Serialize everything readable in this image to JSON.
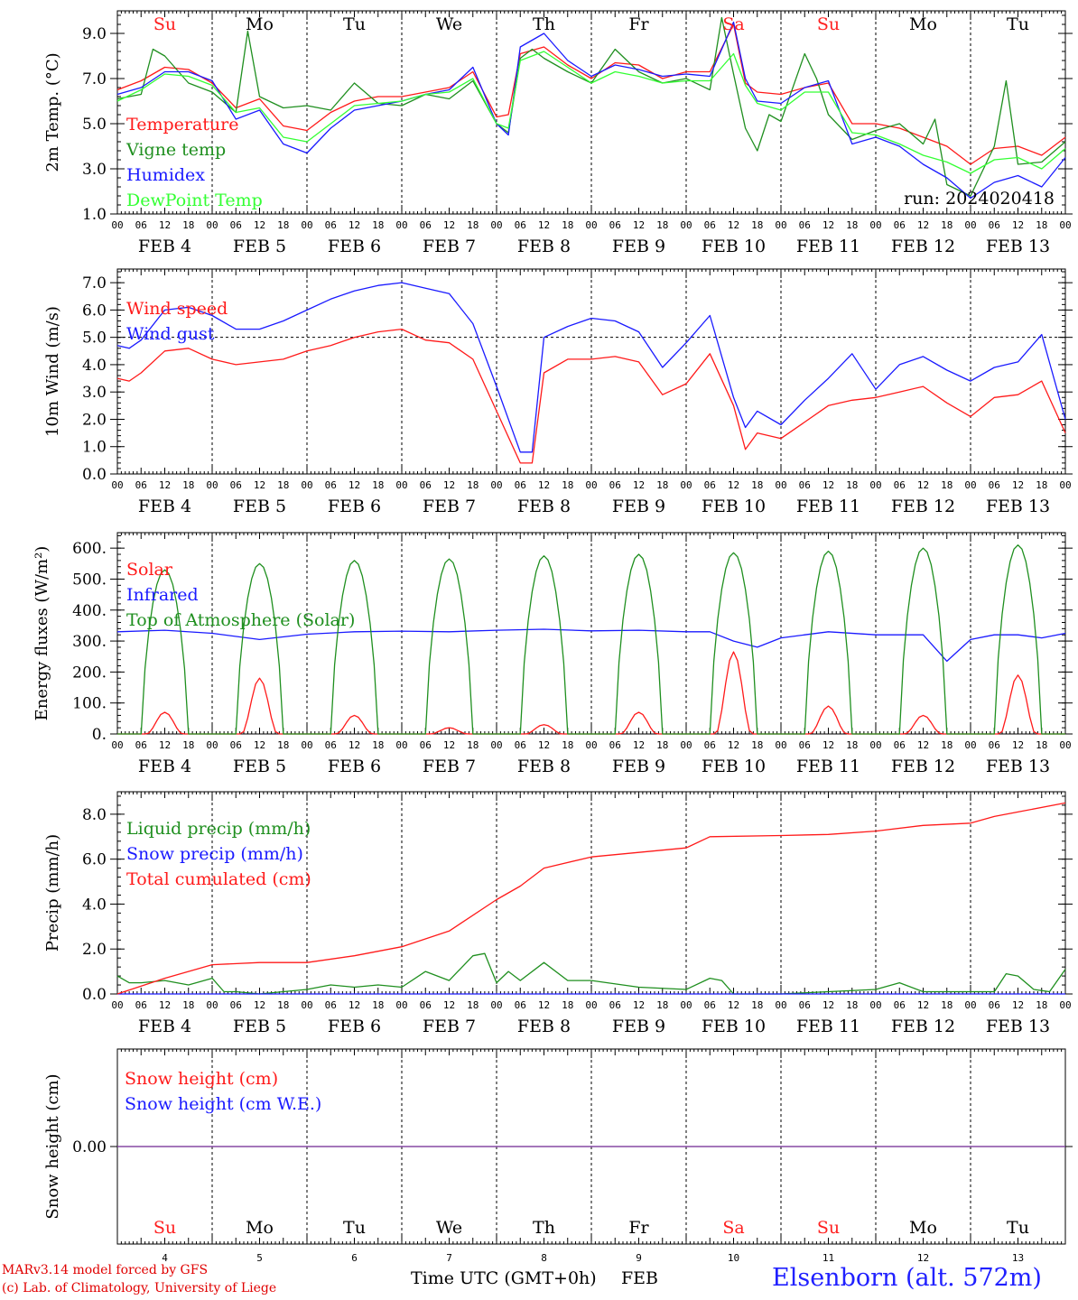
{
  "days": [
    {
      "dow": "Su",
      "date": "FEB  4",
      "num": "4",
      "weekend": true
    },
    {
      "dow": "Mo",
      "date": "FEB  5",
      "num": "5",
      "weekend": false
    },
    {
      "dow": "Tu",
      "date": "FEB  6",
      "num": "6",
      "weekend": false
    },
    {
      "dow": "We",
      "date": "FEB  7",
      "num": "7",
      "weekend": false
    },
    {
      "dow": "Th",
      "date": "FEB  8",
      "num": "8",
      "weekend": false
    },
    {
      "dow": "Fr",
      "date": "FEB  9",
      "num": "9",
      "weekend": false
    },
    {
      "dow": "Sa",
      "date": "FEB 10",
      "num": "10",
      "weekend": true
    },
    {
      "dow": "Su",
      "date": "FEB 11",
      "num": "11",
      "weekend": true
    },
    {
      "dow": "Mo",
      "date": "FEB 12",
      "num": "12",
      "weekend": false
    },
    {
      "dow": "Tu",
      "date": "FEB 13",
      "num": "13",
      "weekend": false
    }
  ],
  "hour_labels": [
    "00",
    "06",
    "12",
    "18"
  ],
  "end_hour_label": "00",
  "colors": {
    "red": "#ff1a1a",
    "green": "#1f8f1f",
    "blue": "#1a1aff",
    "lightgreen": "#33ff33",
    "purple": "#8040a0",
    "weekend": "#ff2020"
  },
  "footer": {
    "model": "MARv3.14 model forced by GFS",
    "credit": "(c) Lab. of Climatology, University of Liege",
    "xtitle": "Time UTC (GMT+0h)",
    "month": "FEB",
    "station": "Elsenborn (alt. 572m)"
  },
  "chart_data": [
    {
      "type": "line",
      "ylabel": "2m Temp. (°C)",
      "ylim": [
        1,
        10
      ],
      "yticks": [
        1,
        3,
        5,
        7,
        9
      ],
      "ytick_labels": [
        "1.0",
        "3.0",
        "5.0",
        "7.0",
        "9.0"
      ],
      "annotation": "run: 2024020418",
      "x_unit": "hours since FEB 4 00 UTC",
      "series": [
        {
          "name": "Temperature",
          "color": "red",
          "x": [
            0,
            6,
            12,
            18,
            24,
            30,
            36,
            42,
            48,
            54,
            60,
            66,
            72,
            78,
            84,
            90,
            96,
            99,
            102,
            108,
            114,
            120,
            126,
            132,
            138,
            144,
            150,
            156,
            159,
            162,
            168,
            174,
            180,
            186,
            192,
            198,
            204,
            210,
            216,
            222,
            228,
            234,
            240
          ],
          "y": [
            6.5,
            6.9,
            7.5,
            7.4,
            6.8,
            5.7,
            6.1,
            4.9,
            4.7,
            5.5,
            6.0,
            6.2,
            6.2,
            6.4,
            6.6,
            7.3,
            5.3,
            5.4,
            8.1,
            8.4,
            7.6,
            7.0,
            7.7,
            7.6,
            7.0,
            7.3,
            7.3,
            9.4,
            6.8,
            6.4,
            6.3,
            6.6,
            6.8,
            5.0,
            5.0,
            4.8,
            4.4,
            4.0,
            3.2,
            3.9,
            4.0,
            3.6,
            4.4
          ]
        },
        {
          "name": "Vigne temp",
          "color": "green",
          "x": [
            0,
            6,
            9,
            12,
            18,
            24,
            30,
            33,
            36,
            42,
            48,
            54,
            60,
            66,
            72,
            78,
            84,
            90,
            96,
            99,
            102,
            105,
            108,
            114,
            120,
            126,
            132,
            138,
            144,
            150,
            153,
            156,
            159,
            162,
            165,
            168,
            174,
            177,
            180,
            186,
            192,
            198,
            204,
            207,
            210,
            216,
            222,
            225,
            228,
            234,
            240
          ],
          "y": [
            6.1,
            6.3,
            8.3,
            8.0,
            6.8,
            6.4,
            5.5,
            9.1,
            6.2,
            5.7,
            5.8,
            5.6,
            6.8,
            5.9,
            5.8,
            6.3,
            6.1,
            6.9,
            5.0,
            4.6,
            7.9,
            8.3,
            7.9,
            7.3,
            6.8,
            8.3,
            7.3,
            6.8,
            7.0,
            6.5,
            9.7,
            7.2,
            4.8,
            3.8,
            5.4,
            5.1,
            8.1,
            7.0,
            5.4,
            4.3,
            4.7,
            5.0,
            4.1,
            5.2,
            2.3,
            1.8,
            4.0,
            6.9,
            3.2,
            3.3,
            4.2
          ]
        },
        {
          "name": "Humidex",
          "color": "blue",
          "x": [
            0,
            6,
            12,
            18,
            24,
            30,
            36,
            42,
            48,
            54,
            60,
            66,
            72,
            78,
            84,
            90,
            96,
            99,
            102,
            108,
            114,
            120,
            126,
            132,
            138,
            144,
            150,
            156,
            159,
            162,
            168,
            174,
            180,
            186,
            192,
            198,
            204,
            210,
            216,
            222,
            228,
            234,
            240
          ],
          "y": [
            6.3,
            6.6,
            7.3,
            7.3,
            6.9,
            5.2,
            5.6,
            4.1,
            3.7,
            4.8,
            5.6,
            5.8,
            6.0,
            6.3,
            6.5,
            7.5,
            5.0,
            4.5,
            8.4,
            9.0,
            7.8,
            7.1,
            7.6,
            7.4,
            7.1,
            7.2,
            7.1,
            9.5,
            7.0,
            6.0,
            5.9,
            6.6,
            6.9,
            4.1,
            4.4,
            4.0,
            3.2,
            2.6,
            1.7,
            2.4,
            2.7,
            2.2,
            3.5
          ]
        },
        {
          "name": "DewPoint Temp",
          "color": "lightgreen",
          "x": [
            0,
            6,
            12,
            18,
            24,
            30,
            36,
            42,
            48,
            54,
            60,
            66,
            72,
            78,
            84,
            90,
            96,
            99,
            102,
            108,
            114,
            120,
            126,
            132,
            138,
            144,
            150,
            156,
            159,
            162,
            168,
            174,
            180,
            186,
            192,
            198,
            204,
            210,
            216,
            222,
            228,
            234,
            240
          ],
          "y": [
            6.0,
            6.5,
            7.2,
            7.1,
            6.7,
            5.5,
            5.7,
            4.4,
            4.2,
            5.0,
            5.8,
            5.9,
            6.0,
            6.3,
            6.4,
            7.0,
            5.0,
            4.8,
            7.8,
            8.2,
            7.5,
            6.8,
            7.3,
            7.1,
            6.8,
            6.9,
            6.9,
            8.1,
            6.7,
            5.9,
            5.6,
            6.4,
            6.4,
            4.6,
            4.5,
            4.1,
            3.6,
            3.3,
            2.8,
            3.4,
            3.5,
            3.0,
            3.9
          ]
        }
      ]
    },
    {
      "type": "line",
      "ylabel": "10m Wind (m/s)",
      "ylim": [
        0,
        7.5
      ],
      "yticks": [
        0,
        1,
        2,
        3,
        4,
        5,
        6,
        7
      ],
      "ytick_labels": [
        "0.0",
        "1.0",
        "2.0",
        "3.0",
        "4.0",
        "5.0",
        "6.0",
        "7.0"
      ],
      "ref_line": 5.0,
      "series": [
        {
          "name": "Wind speed",
          "color": "red",
          "x": [
            0,
            3,
            6,
            12,
            18,
            24,
            30,
            36,
            42,
            48,
            54,
            60,
            66,
            72,
            78,
            84,
            90,
            96,
            102,
            105,
            108,
            114,
            120,
            126,
            132,
            138,
            144,
            150,
            156,
            159,
            162,
            168,
            174,
            180,
            186,
            192,
            198,
            204,
            210,
            216,
            222,
            228,
            234,
            240
          ],
          "y": [
            3.5,
            3.4,
            3.7,
            4.5,
            4.6,
            4.2,
            4.0,
            4.1,
            4.2,
            4.5,
            4.7,
            5.0,
            5.2,
            5.3,
            4.9,
            4.8,
            4.2,
            2.3,
            0.4,
            0.4,
            3.7,
            4.2,
            4.2,
            4.3,
            4.1,
            2.9,
            3.3,
            4.4,
            2.5,
            0.9,
            1.5,
            1.3,
            1.9,
            2.5,
            2.7,
            2.8,
            3.0,
            3.2,
            2.6,
            2.1,
            2.8,
            2.9,
            3.4,
            1.5
          ]
        },
        {
          "name": "Wind gust",
          "color": "blue",
          "x": [
            0,
            3,
            6,
            12,
            18,
            24,
            30,
            36,
            42,
            48,
            54,
            60,
            66,
            72,
            78,
            84,
            90,
            96,
            102,
            105,
            108,
            114,
            120,
            126,
            132,
            138,
            144,
            150,
            156,
            159,
            162,
            168,
            174,
            180,
            186,
            192,
            198,
            204,
            210,
            216,
            222,
            228,
            234,
            240
          ],
          "y": [
            4.7,
            4.6,
            4.9,
            6.0,
            6.1,
            5.8,
            5.3,
            5.3,
            5.6,
            6.0,
            6.4,
            6.7,
            6.9,
            7.0,
            6.8,
            6.6,
            5.5,
            3.2,
            0.8,
            0.8,
            5.0,
            5.4,
            5.7,
            5.6,
            5.2,
            3.9,
            4.8,
            5.8,
            2.8,
            1.7,
            2.3,
            1.8,
            2.7,
            3.5,
            4.4,
            3.1,
            4.0,
            4.3,
            3.8,
            3.4,
            3.9,
            4.1,
            5.1,
            2.0
          ]
        }
      ]
    },
    {
      "type": "line",
      "ylabel": "Energy fluxes (W/m²)",
      "ylim": [
        0,
        650
      ],
      "yticks": [
        0,
        100,
        200,
        300,
        400,
        500,
        600
      ],
      "ytick_labels": [
        "0.",
        "100.",
        "200.",
        "300.",
        "400.",
        "500.",
        "600."
      ],
      "series": [
        {
          "name": "Solar",
          "color": "red",
          "peaks": [
            70,
            180,
            60,
            20,
            30,
            70,
            265,
            90,
            60,
            190
          ]
        },
        {
          "name": "Infrared",
          "color": "blue",
          "x": [
            0,
            12,
            24,
            36,
            48,
            60,
            72,
            84,
            96,
            108,
            120,
            132,
            144,
            150,
            156,
            162,
            168,
            174,
            180,
            192,
            204,
            210,
            216,
            222,
            228,
            234,
            240
          ],
          "y": [
            330,
            335,
            325,
            305,
            322,
            330,
            332,
            330,
            335,
            338,
            333,
            335,
            330,
            330,
            300,
            280,
            310,
            320,
            330,
            320,
            320,
            235,
            305,
            320,
            320,
            310,
            325
          ]
        },
        {
          "name": "Top of Atmosphere (Solar)",
          "color": "green",
          "peaks": [
            530,
            550,
            560,
            565,
            575,
            580,
            585,
            590,
            600,
            610
          ]
        }
      ]
    },
    {
      "type": "line",
      "ylabel": "Precip (mm/h)",
      "ylim": [
        0,
        9
      ],
      "yticks": [
        0,
        2,
        4,
        6,
        8
      ],
      "ytick_labels": [
        "0.0",
        "2.0",
        "4.0",
        "6.0",
        "8.0"
      ],
      "series": [
        {
          "name": "Liquid precip (mm/h)",
          "color": "green",
          "x": [
            0,
            3,
            6,
            12,
            18,
            24,
            27,
            30,
            36,
            48,
            54,
            60,
            66,
            72,
            78,
            84,
            90,
            93,
            96,
            99,
            102,
            108,
            114,
            120,
            132,
            144,
            150,
            153,
            156,
            168,
            180,
            192,
            198,
            204,
            216,
            222,
            225,
            228,
            232,
            236,
            240
          ],
          "y": [
            0.8,
            0.5,
            0.5,
            0.6,
            0.4,
            0.7,
            0.1,
            0.1,
            0.0,
            0.2,
            0.4,
            0.3,
            0.4,
            0.3,
            1.0,
            0.6,
            1.7,
            1.8,
            0.5,
            1.0,
            0.6,
            1.4,
            0.6,
            0.6,
            0.3,
            0.2,
            0.7,
            0.6,
            0.0,
            0.0,
            0.1,
            0.2,
            0.5,
            0.1,
            0.1,
            0.1,
            0.9,
            0.8,
            0.2,
            0.1,
            1.1
          ]
        },
        {
          "name": "Snow precip (mm/h)",
          "color": "blue",
          "x": [
            0,
            240
          ],
          "y": [
            0.0,
            0.0
          ]
        },
        {
          "name": "Total cumulated (cm)",
          "color": "red",
          "x": [
            0,
            12,
            24,
            36,
            48,
            60,
            72,
            84,
            96,
            102,
            108,
            120,
            132,
            144,
            150,
            168,
            180,
            192,
            204,
            216,
            222,
            228,
            240
          ],
          "y": [
            0.0,
            0.7,
            1.3,
            1.4,
            1.4,
            1.7,
            2.1,
            2.8,
            4.2,
            4.8,
            5.6,
            6.1,
            6.3,
            6.5,
            7.0,
            7.05,
            7.1,
            7.25,
            7.5,
            7.6,
            7.9,
            8.1,
            8.5
          ]
        }
      ]
    },
    {
      "type": "line",
      "ylabel": "Snow height (cm)",
      "ylim": [
        -1,
        1
      ],
      "yticks": [
        0
      ],
      "ytick_labels": [
        "0.00"
      ],
      "series": [
        {
          "name": "Snow height (cm)",
          "color": "red",
          "x": [
            0,
            240
          ],
          "y": [
            0,
            0
          ]
        },
        {
          "name": "Snow height (cm W.E.)",
          "color": "blue",
          "x": [
            0,
            240
          ],
          "y": [
            0,
            0
          ]
        }
      ]
    }
  ]
}
